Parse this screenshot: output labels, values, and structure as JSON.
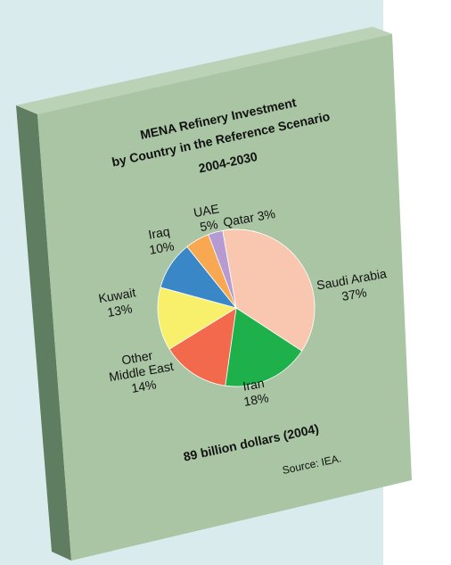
{
  "chart_data": {
    "type": "pie",
    "title": [
      "MENA Refinery Investment",
      "by Country in the Reference Scenario",
      "2004-2030"
    ],
    "categories": [
      "Saudi Arabia",
      "Iran",
      "Other Middle East",
      "Kuwait",
      "Iraq",
      "UAE",
      "Qatar"
    ],
    "values": [
      37,
      18,
      14,
      13,
      10,
      5,
      3
    ],
    "value_labels": [
      "37%",
      "18%",
      "14%",
      "13%",
      "10%",
      "5%",
      "3%"
    ],
    "colors": [
      "#f9c6b0",
      "#1db04b",
      "#f26a4b",
      "#f8ef6a",
      "#3a87c8",
      "#f9a852",
      "#b59bd1"
    ],
    "total_label": "89 billion dollars (2004)",
    "source": "Source: IEA."
  }
}
